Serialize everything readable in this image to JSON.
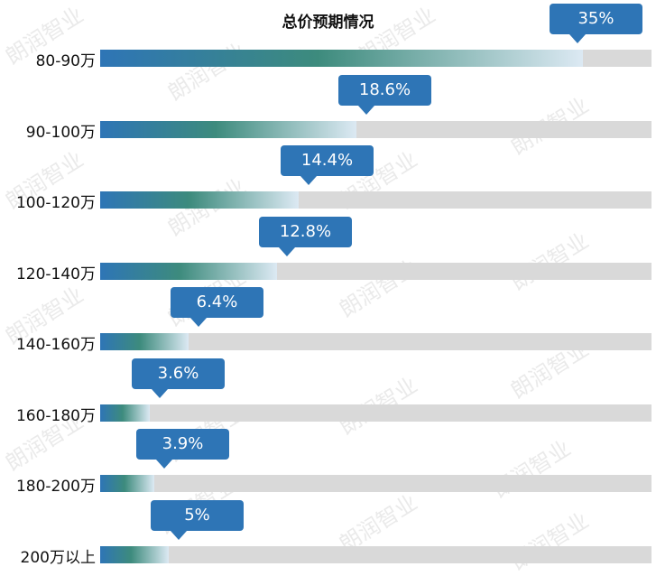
{
  "chart_data": {
    "type": "bar",
    "orientation": "horizontal",
    "title": "总价预期情况",
    "categories": [
      "80-90万",
      "90-100万",
      "100-120万",
      "120-140万",
      "140-160万",
      "160-180万",
      "180-200万",
      "200万以上"
    ],
    "values": [
      35,
      18.6,
      14.4,
      12.8,
      6.4,
      3.6,
      3.9,
      5
    ],
    "data_labels": [
      "35%",
      "18.6%",
      "14.4%",
      "12.8%",
      "6.4%",
      "3.6%",
      "3.9%",
      "5%"
    ],
    "unit": "%",
    "xlim": [
      0,
      40
    ],
    "grid": false,
    "legend": "none"
  },
  "colors": {
    "bar_start": "#2e75b6",
    "bar_mid": "#3d8b7d",
    "bar_end": "#dce9f3",
    "track": "#d9d9d9",
    "callout": "#2e75b6",
    "callout_text": "#ffffff"
  },
  "watermark_text": "朗润智业"
}
